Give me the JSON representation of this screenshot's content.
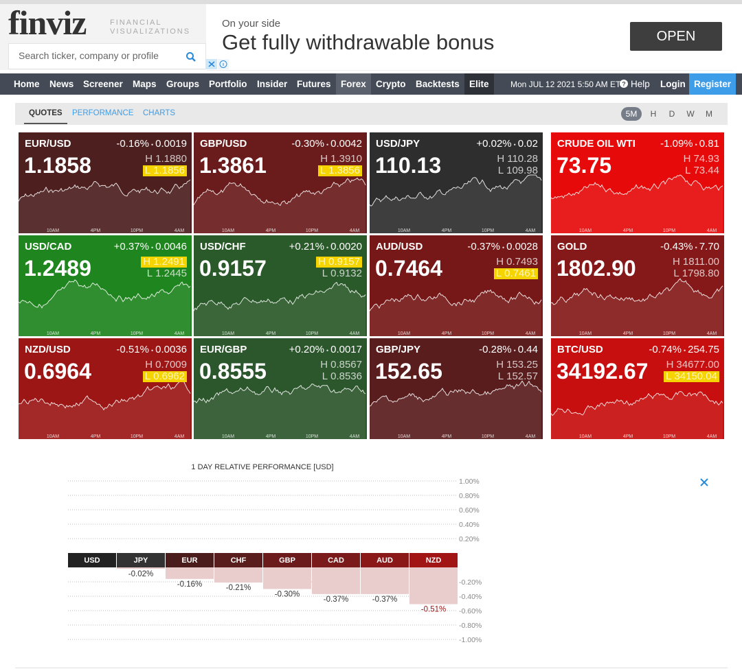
{
  "header": {
    "logo": "finviz",
    "tagline": [
      "FINANCIAL",
      "VISUALIZATIONS"
    ],
    "search_placeholder": "Search ticker, company or profile"
  },
  "ad": {
    "kicker": "On your side",
    "headline": "Get fully withdrawable bonus",
    "button": "OPEN"
  },
  "nav": {
    "items": [
      "Home",
      "News",
      "Screener",
      "Maps",
      "Groups",
      "Portfolio",
      "Insider",
      "Futures",
      "Forex",
      "Crypto",
      "Backtests",
      "Elite"
    ],
    "active_index": 8,
    "dark_index": 11,
    "datetime": "Mon JUL 12 2021 5:50 AM ET",
    "help": "Help",
    "login": "Login",
    "register": "Register"
  },
  "tabs": {
    "items": [
      "QUOTES",
      "PERFORMANCE",
      "CHARTS"
    ],
    "active_index": 0,
    "timeframes": [
      "5M",
      "H",
      "D",
      "W",
      "M"
    ],
    "active_timeframe_index": 0
  },
  "tiles": {
    "time_labels": [
      "10AM",
      "4PM",
      "10PM",
      "4AM"
    ],
    "high_label": "H",
    "low_label": "L",
    "items": [
      {
        "name": "EUR/USD",
        "change": "-0.16%",
        "change_abs": "0.0019",
        "price": "1.1858",
        "high": "1.1880",
        "low": "1.1856",
        "highlight": "low",
        "color": "#4e1f1f"
      },
      {
        "name": "GBP/USD",
        "change": "-0.30%",
        "change_abs": "0.0042",
        "price": "1.3861",
        "high": "1.3910",
        "low": "1.3856",
        "highlight": "low",
        "color": "#6a1c1c"
      },
      {
        "name": "USD/JPY",
        "change": "+0.02%",
        "change_abs": "0.02",
        "price": "110.13",
        "high": "110.28",
        "low": "109.98",
        "highlight": null,
        "color": "#2e2e2e"
      },
      {
        "name": "CRUDE OIL WTI",
        "change": "-1.09%",
        "change_abs": "0.81",
        "price": "73.75",
        "high": "74.93",
        "low": "73.44",
        "highlight": null,
        "color": "#e60a0a"
      },
      {
        "name": "USD/CAD",
        "change": "+0.37%",
        "change_abs": "0.0046",
        "price": "1.2489",
        "high": "1.2491",
        "low": "1.2445",
        "highlight": "high",
        "color": "#1f851f"
      },
      {
        "name": "USD/CHF",
        "change": "+0.21%",
        "change_abs": "0.0020",
        "price": "0.9157",
        "high": "0.9157",
        "low": "0.9132",
        "highlight": "high",
        "color": "#2a5a2a"
      },
      {
        "name": "AUD/USD",
        "change": "-0.37%",
        "change_abs": "0.0028",
        "price": "0.7464",
        "high": "0.7493",
        "low": "0.7461",
        "highlight": "low",
        "color": "#761818"
      },
      {
        "name": "GOLD",
        "change": "-0.43%",
        "change_abs": "7.70",
        "price": "1802.90",
        "high": "1811.00",
        "low": "1798.80",
        "highlight": null,
        "color": "#851919"
      },
      {
        "name": "NZD/USD",
        "change": "-0.51%",
        "change_abs": "0.0036",
        "price": "0.6964",
        "high": "0.7009",
        "low": "0.6962",
        "highlight": "low",
        "color": "#9c1616"
      },
      {
        "name": "EUR/GBP",
        "change": "+0.20%",
        "change_abs": "0.0017",
        "price": "0.8555",
        "high": "0.8567",
        "low": "0.8536",
        "highlight": null,
        "color": "#2c562c"
      },
      {
        "name": "GBP/JPY",
        "change": "-0.28%",
        "change_abs": "0.44",
        "price": "152.65",
        "high": "153.25",
        "low": "152.57",
        "highlight": null,
        "color": "#5a1d1d"
      },
      {
        "name": "BTC/USD",
        "change": "-0.74%",
        "change_abs": "254.75",
        "price": "34192.67",
        "high": "34677.00",
        "low": "34150.04",
        "highlight": "low",
        "color": "#c80f0f"
      }
    ]
  },
  "chart_data": {
    "type": "bar",
    "title": "1 DAY RELATIVE PERFORMANCE  [USD]",
    "categories": [
      "USD",
      "JPY",
      "EUR",
      "CHF",
      "GBP",
      "CAD",
      "AUD",
      "NZD"
    ],
    "values": [
      null,
      -0.02,
      -0.16,
      -0.21,
      -0.3,
      -0.37,
      -0.37,
      -0.51
    ],
    "value_labels": [
      null,
      "-0.02%",
      "-0.16%",
      "-0.21%",
      "-0.30%",
      "-0.37%",
      "-0.37%",
      "-0.51%"
    ],
    "colors": [
      "#222222",
      "#333333",
      "#4a1c1c",
      "#5a1d1d",
      "#6b1b1b",
      "#7a1a1a",
      "#8a1818",
      "#a21515"
    ],
    "bar_color": "#e9cccc",
    "ylim": [
      -1,
      1
    ],
    "yticks": [
      {
        "value": 1,
        "label": "1.00%"
      },
      {
        "value": 0.8,
        "label": "0.80%"
      },
      {
        "value": 0.6,
        "label": "0.60%"
      },
      {
        "value": 0.4,
        "label": "0.40%"
      },
      {
        "value": 0.2,
        "label": "0.20%"
      },
      {
        "value": -0.2,
        "label": "-0.20%"
      },
      {
        "value": -0.4,
        "label": "-0.40%"
      },
      {
        "value": -0.6,
        "label": "-0.60%"
      },
      {
        "value": -0.8,
        "label": "-0.80%"
      },
      {
        "value": -1,
        "label": "-1.00%"
      }
    ],
    "grid": true
  }
}
